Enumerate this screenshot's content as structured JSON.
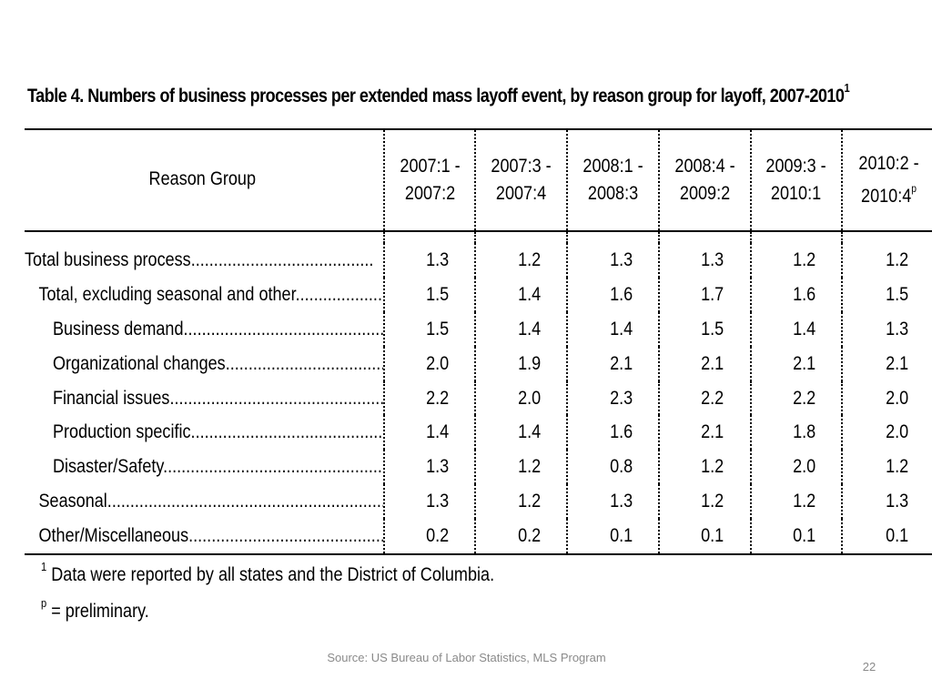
{
  "title": {
    "text": "Table 4. Numbers of business processes per extended mass layoff event, by reason group for layoff,  2007-2010",
    "sup": "1"
  },
  "table": {
    "header_label": "Reason Group",
    "periods": [
      {
        "line1": "2007:1 -",
        "line2": "2007:2",
        "sup": ""
      },
      {
        "line1": "2007:3 -",
        "line2": "2007:4",
        "sup": ""
      },
      {
        "line1": "2008:1 -",
        "line2": "2008:3",
        "sup": ""
      },
      {
        "line1": "2008:4 -",
        "line2": "2009:2",
        "sup": ""
      },
      {
        "line1": "2009:3 -",
        "line2": "2010:1",
        "sup": ""
      },
      {
        "line1": "2010:2 -",
        "line2": "2010:4",
        "sup": "p"
      }
    ],
    "rows": [
      {
        "label": "Total business process",
        "indent": 0,
        "values": [
          "1.3",
          "1.2",
          "1.3",
          "1.3",
          "1.2",
          "1.2"
        ]
      },
      {
        "label": "Total, excluding seasonal and other",
        "indent": 1,
        "values": [
          "1.5",
          "1.4",
          "1.6",
          "1.7",
          "1.6",
          "1.5"
        ]
      },
      {
        "label": "Business demand",
        "indent": 2,
        "values": [
          "1.5",
          "1.4",
          "1.4",
          "1.5",
          "1.4",
          "1.3"
        ]
      },
      {
        "label": "Organizational changes",
        "indent": 2,
        "values": [
          "2.0",
          "1.9",
          "2.1",
          "2.1",
          "2.1",
          "2.1"
        ]
      },
      {
        "label": "Financial issues",
        "indent": 2,
        "values": [
          "2.2",
          "2.0",
          "2.3",
          "2.2",
          "2.2",
          "2.0"
        ]
      },
      {
        "label": "Production specific",
        "indent": 2,
        "values": [
          "1.4",
          "1.4",
          "1.6",
          "2.1",
          "1.8",
          "2.0"
        ]
      },
      {
        "label": "Disaster/Safety",
        "indent": 2,
        "values": [
          "1.3",
          "1.2",
          "0.8",
          "1.2",
          "2.0",
          "1.2"
        ]
      },
      {
        "label": "Seasonal",
        "indent": 1,
        "values": [
          "1.3",
          "1.2",
          "1.3",
          "1.2",
          "1.2",
          "1.3"
        ]
      },
      {
        "label": "Other/Miscellaneous",
        "indent": 1,
        "values": [
          "0.2",
          "0.2",
          "0.1",
          "0.1",
          "0.1",
          "0.1"
        ]
      }
    ]
  },
  "footnotes": [
    {
      "sup": "1",
      "text": " Data were reported by all states and the District of Columbia."
    },
    {
      "sup": "p",
      "text": " = preliminary."
    }
  ],
  "source": "Source: US Bureau of Labor Statistics, MLS Program",
  "page_number": "22"
}
